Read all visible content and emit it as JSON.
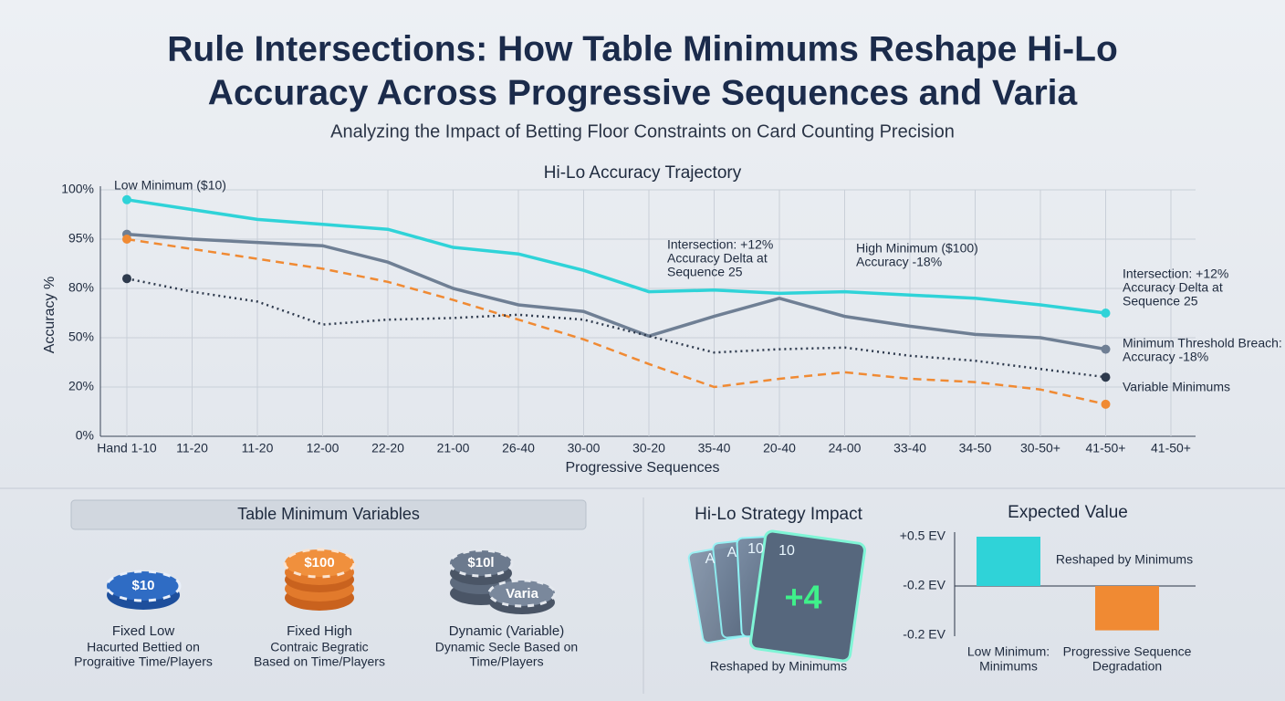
{
  "chart_data": [
    {
      "type": "line",
      "title": "Rule Intersections: How Table Minimums Reshape Hi-Lo Accuracy Across Progressive Sequences and Varia",
      "title_lines": [
        "Rule Intersections: How Table Minimums Reshape Hi-Lo",
        "Accuracy Across Progressive Sequences and Varia"
      ],
      "subtitle": "Analyzing the Impact of Betting Floor Constraints on Card Counting Precision",
      "chart_title": "Hi-Lo Accuracy Trajectory",
      "x_label": "Progressive Sequences",
      "y_label": "Accuracy %",
      "categories": [
        "Hand 1-10",
        "11-20",
        "11-20",
        "12-00",
        "22-20",
        "21-00",
        "26-40",
        "30-00",
        "30-20",
        "35-40",
        "20-40",
        "24-00",
        "33-40",
        "34-50",
        "30-50+",
        "41-50+",
        "41-50+"
      ],
      "yticks": [
        {
          "value": 0,
          "label": "0%"
        },
        {
          "value": 20,
          "label": "20%"
        },
        {
          "value": 50,
          "label": "50%"
        },
        {
          "value": 80,
          "label": "80%"
        },
        {
          "value": 95,
          "label": "95%"
        },
        {
          "value": 100,
          "label": "100%"
        }
      ],
      "ylim": [
        0,
        100
      ],
      "grid": true,
      "series": [
        {
          "color": "#2fd3d8",
          "style": "solid",
          "values": [
            99,
            98,
            97,
            96.5,
            96,
            92.5,
            90.5,
            85.5,
            78,
            79,
            77,
            78,
            76,
            74,
            70,
            65,
            null
          ]
        },
        {
          "color": "#6f7f94",
          "style": "solid",
          "values": [
            95.5,
            95,
            94,
            93,
            88,
            80,
            70,
            66,
            51,
            63,
            74,
            63,
            57,
            52,
            50,
            43,
            null
          ]
        },
        {
          "color": "#f08a33",
          "style": "dashed",
          "values": [
            95,
            92,
            89,
            86,
            82,
            73,
            61,
            49,
            34,
            20,
            25,
            29,
            25,
            23,
            19,
            13,
            null
          ]
        },
        {
          "color": "#2e3a4d",
          "style": "dotted",
          "values": [
            83,
            78,
            72,
            58,
            61,
            62,
            64,
            61,
            51,
            41,
            43,
            44,
            39,
            36,
            31,
            26,
            null
          ]
        }
      ],
      "annotations": [
        [
          "Low Minimum ($10)"
        ],
        [
          "Intersection: +12%",
          "Accuracy Delta at",
          "Sequence 25"
        ],
        [
          "High Minimum ($100)",
          "Accuracy -18%"
        ],
        [
          "Intersection: +12%",
          "Accuracy Delta at",
          "Sequence 25"
        ],
        [
          "Minimum Threshold Breach:",
          "Accuracy -18%"
        ],
        [
          "Variable Minimums"
        ]
      ]
    },
    {
      "type": "bar",
      "title": "Expected Value",
      "axis_labels": [
        "+0.5 EV",
        "-0.2 EV",
        "-0.2 EV"
      ],
      "categories": [
        [
          "Low Minimum:",
          "Minimums"
        ],
        [
          "Progressive Sequence",
          "Degradation"
        ]
      ],
      "values": [
        0.5,
        -0.45
      ],
      "colors": [
        "#2fd3d8",
        "#f08a33"
      ],
      "ylim": [
        -0.5,
        0.5
      ],
      "note": "Reshaped by Minimums"
    }
  ],
  "panels": {
    "table_minimums": {
      "title": "Table Minimum Variables",
      "items": [
        {
          "chip": [
            "$10"
          ],
          "name": "Fixed Low",
          "desc": [
            "Hacurted Bettied on",
            "Prograitive Time/Players"
          ]
        },
        {
          "chip": [
            "$100"
          ],
          "name": "Fixed High",
          "desc": [
            "Contraic Begratic",
            "Based on Time/Players"
          ]
        },
        {
          "chip": [
            "$10l",
            "Varia"
          ],
          "name": "Dynamic (Variable)",
          "desc": [
            "Dynamic Secle Based on",
            "Time/Players"
          ]
        }
      ]
    },
    "strategy": {
      "title": "Hi-Lo Strategy Impact",
      "cards": [
        "A",
        "A",
        "10",
        "10"
      ],
      "count": "+4",
      "caption": "Reshaped by Minimums"
    }
  }
}
